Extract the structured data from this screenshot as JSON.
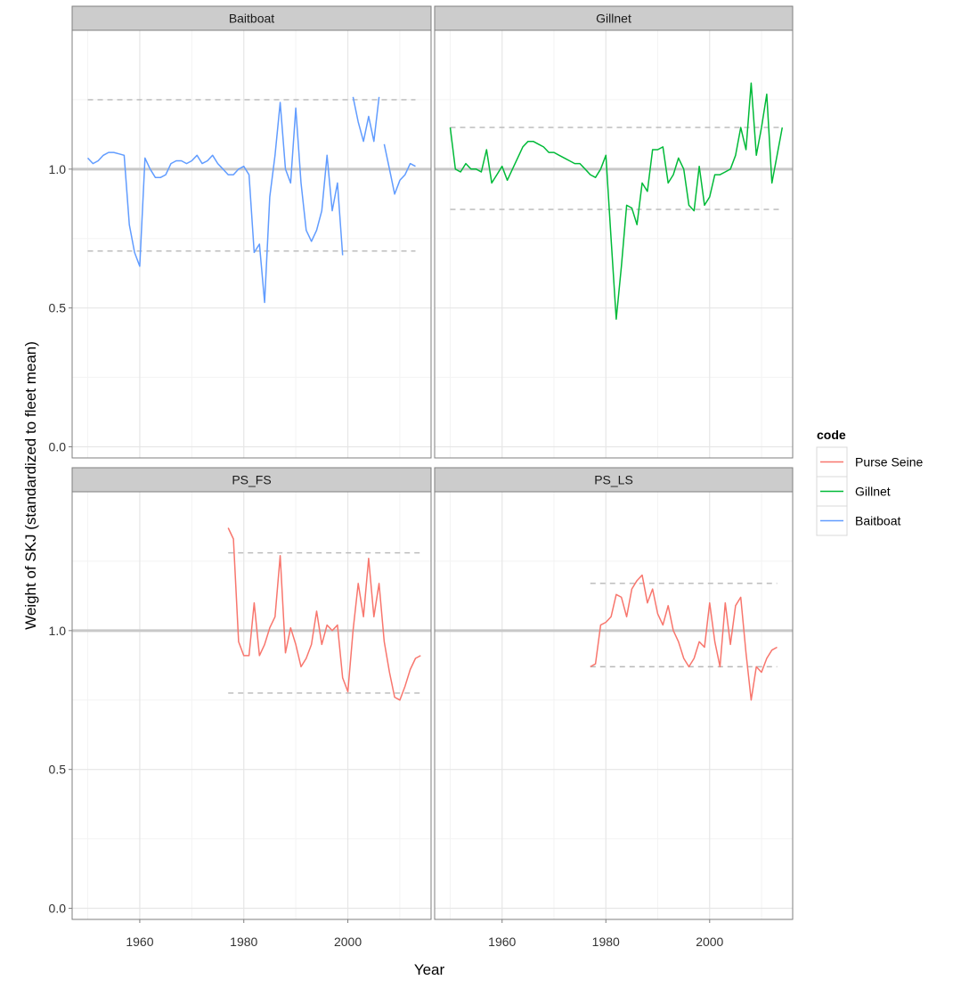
{
  "chart_data": {
    "type": "line",
    "xlabel": "Year",
    "ylabel": "Weight of SKJ (standardized to fleet mean)",
    "x_ticks": [
      1960,
      1980,
      2000
    ],
    "y_ticks": [
      0.0,
      0.5,
      1.0
    ],
    "y_tick_labels": [
      "0.0",
      "0.5",
      "1.0"
    ],
    "xlim": [
      1947,
      2016
    ],
    "grid": true,
    "legend": {
      "title": "code",
      "placement": "right",
      "entries": [
        {
          "label": "Purse Seine",
          "color": "#F8766D"
        },
        {
          "label": "Gillnet",
          "color": "#00BA38"
        },
        {
          "label": "Baitboat",
          "color": "#619CFF"
        }
      ]
    },
    "reference_line": 1.0,
    "panels": [
      {
        "title": "Baitboat",
        "color": "#619CFF",
        "ylim": [
          -0.04,
          1.5
        ],
        "bands": [
          0.705,
          1.25
        ],
        "segments": [
          [
            [
              1950,
              1.04
            ],
            [
              1951,
              1.02
            ],
            [
              1952,
              1.03
            ],
            [
              1953,
              1.05
            ],
            [
              1954,
              1.06
            ],
            [
              1955,
              1.06
            ],
            [
              1956,
              1.055
            ],
            [
              1957,
              1.05
            ],
            [
              1958,
              0.8
            ],
            [
              1959,
              0.7
            ],
            [
              1960,
              0.65
            ],
            [
              1961,
              1.04
            ],
            [
              1962,
              1.0
            ],
            [
              1963,
              0.97
            ],
            [
              1964,
              0.97
            ],
            [
              1965,
              0.98
            ],
            [
              1966,
              1.02
            ],
            [
              1967,
              1.03
            ],
            [
              1968,
              1.03
            ],
            [
              1969,
              1.02
            ],
            [
              1970,
              1.03
            ],
            [
              1971,
              1.05
            ],
            [
              1972,
              1.02
            ],
            [
              1973,
              1.03
            ],
            [
              1974,
              1.05
            ],
            [
              1975,
              1.02
            ],
            [
              1976,
              1.0
            ],
            [
              1977,
              0.98
            ],
            [
              1978,
              0.98
            ],
            [
              1979,
              1.0
            ],
            [
              1980,
              1.01
            ],
            [
              1981,
              0.98
            ],
            [
              1982,
              0.7
            ],
            [
              1983,
              0.73
            ],
            [
              1984,
              0.52
            ],
            [
              1985,
              0.9
            ],
            [
              1986,
              1.05
            ],
            [
              1987,
              1.24
            ],
            [
              1988,
              1.0
            ],
            [
              1989,
              0.95
            ],
            [
              1990,
              1.22
            ],
            [
              1991,
              0.95
            ],
            [
              1992,
              0.78
            ],
            [
              1993,
              0.74
            ],
            [
              1994,
              0.78
            ],
            [
              1995,
              0.85
            ],
            [
              1996,
              1.05
            ],
            [
              1997,
              0.85
            ],
            [
              1998,
              0.95
            ],
            [
              1999,
              0.69
            ]
          ],
          [
            [
              2001,
              1.26
            ],
            [
              2002,
              1.17
            ],
            [
              2003,
              1.1
            ],
            [
              2004,
              1.19
            ],
            [
              2005,
              1.1
            ],
            [
              2006,
              1.26
            ]
          ],
          [
            [
              2007,
              1.09
            ],
            [
              2008,
              1.0
            ],
            [
              2009,
              0.91
            ],
            [
              2010,
              0.96
            ],
            [
              2011,
              0.98
            ],
            [
              2012,
              1.02
            ],
            [
              2013,
              1.01
            ]
          ]
        ]
      },
      {
        "title": "Gillnet",
        "color": "#00BA38",
        "ylim": [
          -0.04,
          1.5
        ],
        "bands": [
          0.855,
          1.15
        ],
        "segments": [
          [
            [
              1950,
              1.15
            ],
            [
              1951,
              1.0
            ],
            [
              1952,
              0.99
            ],
            [
              1953,
              1.02
            ],
            [
              1954,
              1.0
            ],
            [
              1955,
              1.0
            ],
            [
              1956,
              0.99
            ],
            [
              1957,
              1.07
            ],
            [
              1958,
              0.95
            ],
            [
              1959,
              0.98
            ],
            [
              1960,
              1.01
            ],
            [
              1961,
              0.96
            ],
            [
              1962,
              1.0
            ],
            [
              1963,
              1.04
            ],
            [
              1964,
              1.08
            ],
            [
              1965,
              1.1
            ],
            [
              1966,
              1.1
            ],
            [
              1967,
              1.09
            ],
            [
              1968,
              1.08
            ],
            [
              1969,
              1.06
            ],
            [
              1970,
              1.06
            ],
            [
              1971,
              1.05
            ],
            [
              1972,
              1.04
            ],
            [
              1973,
              1.03
            ],
            [
              1974,
              1.02
            ],
            [
              1975,
              1.02
            ],
            [
              1976,
              1.0
            ],
            [
              1977,
              0.98
            ],
            [
              1978,
              0.97
            ],
            [
              1979,
              1.0
            ],
            [
              1980,
              1.05
            ],
            [
              1981,
              0.75
            ],
            [
              1982,
              0.46
            ],
            [
              1983,
              0.65
            ],
            [
              1984,
              0.87
            ],
            [
              1985,
              0.86
            ],
            [
              1986,
              0.8
            ],
            [
              1987,
              0.95
            ],
            [
              1988,
              0.92
            ],
            [
              1989,
              1.07
            ],
            [
              1990,
              1.07
            ],
            [
              1991,
              1.08
            ],
            [
              1992,
              0.95
            ],
            [
              1993,
              0.98
            ],
            [
              1994,
              1.04
            ],
            [
              1995,
              1.0
            ],
            [
              1996,
              0.87
            ],
            [
              1997,
              0.85
            ],
            [
              1998,
              1.01
            ],
            [
              1999,
              0.87
            ],
            [
              2000,
              0.9
            ],
            [
              2001,
              0.98
            ],
            [
              2002,
              0.98
            ],
            [
              2003,
              0.99
            ],
            [
              2004,
              1.0
            ],
            [
              2005,
              1.05
            ],
            [
              2006,
              1.15
            ],
            [
              2007,
              1.07
            ],
            [
              2008,
              1.31
            ],
            [
              2009,
              1.05
            ],
            [
              2010,
              1.15
            ],
            [
              2011,
              1.27
            ],
            [
              2012,
              0.95
            ],
            [
              2013,
              1.05
            ],
            [
              2014,
              1.15
            ]
          ]
        ]
      },
      {
        "title": "PS_FS",
        "color": "#F8766D",
        "ylim": [
          -0.04,
          1.5
        ],
        "bands": [
          0.775,
          1.28
        ],
        "segments": [
          [
            [
              1977,
              1.37
            ],
            [
              1978,
              1.33
            ],
            [
              1979,
              0.96
            ],
            [
              1980,
              0.91
            ],
            [
              1981,
              0.91
            ],
            [
              1982,
              1.1
            ],
            [
              1983,
              0.91
            ],
            [
              1984,
              0.95
            ],
            [
              1985,
              1.01
            ],
            [
              1986,
              1.05
            ],
            [
              1987,
              1.27
            ],
            [
              1988,
              0.92
            ],
            [
              1989,
              1.01
            ],
            [
              1990,
              0.95
            ],
            [
              1991,
              0.87
            ],
            [
              1992,
              0.9
            ],
            [
              1993,
              0.95
            ],
            [
              1994,
              1.07
            ],
            [
              1995,
              0.95
            ],
            [
              1996,
              1.02
            ],
            [
              1997,
              1.0
            ],
            [
              1998,
              1.02
            ],
            [
              1999,
              0.83
            ],
            [
              2000,
              0.78
            ],
            [
              2001,
              1.0
            ],
            [
              2002,
              1.17
            ],
            [
              2003,
              1.05
            ],
            [
              2004,
              1.26
            ],
            [
              2005,
              1.05
            ],
            [
              2006,
              1.17
            ],
            [
              2007,
              0.96
            ],
            [
              2008,
              0.85
            ],
            [
              2009,
              0.76
            ],
            [
              2010,
              0.75
            ],
            [
              2011,
              0.8
            ],
            [
              2012,
              0.86
            ],
            [
              2013,
              0.9
            ],
            [
              2014,
              0.91
            ]
          ]
        ]
      },
      {
        "title": "PS_LS",
        "color": "#F8766D",
        "ylim": [
          -0.04,
          1.5
        ],
        "bands": [
          0.87,
          1.17
        ],
        "segments": [
          [
            [
              1977,
              0.87
            ],
            [
              1978,
              0.88
            ],
            [
              1979,
              1.02
            ],
            [
              1980,
              1.03
            ],
            [
              1981,
              1.05
            ],
            [
              1982,
              1.13
            ],
            [
              1983,
              1.12
            ],
            [
              1984,
              1.05
            ],
            [
              1985,
              1.15
            ],
            [
              1986,
              1.18
            ],
            [
              1987,
              1.2
            ],
            [
              1988,
              1.1
            ],
            [
              1989,
              1.15
            ],
            [
              1990,
              1.06
            ],
            [
              1991,
              1.02
            ],
            [
              1992,
              1.09
            ],
            [
              1993,
              1.0
            ],
            [
              1994,
              0.96
            ],
            [
              1995,
              0.9
            ],
            [
              1996,
              0.87
            ],
            [
              1997,
              0.9
            ],
            [
              1998,
              0.96
            ],
            [
              1999,
              0.94
            ],
            [
              2000,
              1.1
            ],
            [
              2001,
              0.96
            ],
            [
              2002,
              0.87
            ],
            [
              2003,
              1.1
            ],
            [
              2004,
              0.95
            ],
            [
              2005,
              1.09
            ],
            [
              2006,
              1.12
            ],
            [
              2007,
              0.92
            ],
            [
              2008,
              0.75
            ],
            [
              2009,
              0.87
            ],
            [
              2010,
              0.85
            ],
            [
              2011,
              0.9
            ],
            [
              2012,
              0.93
            ],
            [
              2013,
              0.94
            ]
          ]
        ]
      }
    ]
  }
}
